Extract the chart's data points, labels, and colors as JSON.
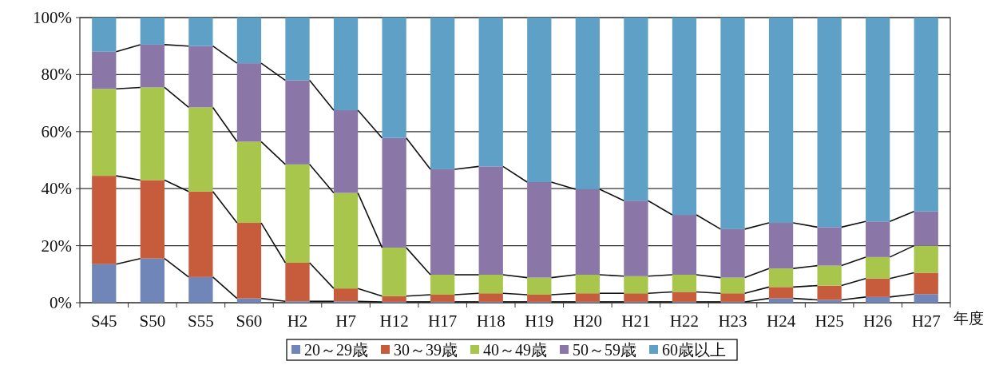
{
  "chart_data": {
    "type": "bar",
    "stacked": true,
    "xlabel": "年度",
    "categories": [
      "S45",
      "S50",
      "S55",
      "S60",
      "H2",
      "H7",
      "H12",
      "H17",
      "H18",
      "H19",
      "H20",
      "H21",
      "H22",
      "H23",
      "H24",
      "H25",
      "H26",
      "H27"
    ],
    "series": [
      {
        "name": "20～29歳",
        "color": "#7085b8",
        "values": [
          13.5,
          15.5,
          9,
          1.5,
          0.5,
          0.5,
          0.3,
          0.3,
          0.3,
          0.3,
          0.3,
          0.3,
          0.3,
          0.3,
          1.5,
          1,
          2,
          3
        ]
      },
      {
        "name": "30～39歳",
        "color": "#c65c3c",
        "values": [
          31,
          27.5,
          30,
          26.5,
          13.5,
          4.5,
          2,
          2.5,
          3,
          2.5,
          3,
          3,
          3.5,
          3,
          4,
          5,
          6.5,
          7.5
        ]
      },
      {
        "name": "40～49歳",
        "color": "#a9c64c",
        "values": [
          30.5,
          32.5,
          29.5,
          28.5,
          34.5,
          33.5,
          17,
          7,
          6.5,
          6,
          6.5,
          6,
          6,
          5.5,
          6.5,
          7,
          7.5,
          9.5
        ]
      },
      {
        "name": "50～59歳",
        "color": "#8b76a8",
        "values": [
          13,
          15,
          21.5,
          27.5,
          29.5,
          29,
          38.5,
          37,
          38,
          33.5,
          30,
          26.5,
          21,
          17,
          16,
          13.5,
          12.5,
          12
        ]
      },
      {
        "name": "60歳以上",
        "color": "#5fa1c6",
        "values": [
          12,
          9.5,
          10,
          16,
          22,
          32.5,
          42.2,
          53.2,
          52.2,
          57.7,
          60.2,
          64.2,
          69.2,
          74.2,
          72,
          73.5,
          71.5,
          68
        ]
      }
    ],
    "ylim": [
      0,
      100
    ],
    "yticks": [
      {
        "value": 0,
        "label": "0%"
      },
      {
        "value": 20,
        "label": "20%"
      },
      {
        "value": 40,
        "label": "40%"
      },
      {
        "value": 60,
        "label": "60%"
      },
      {
        "value": 80,
        "label": "80%"
      },
      {
        "value": 100,
        "label": "100%"
      }
    ],
    "grid": "y",
    "legend": "bottom"
  }
}
